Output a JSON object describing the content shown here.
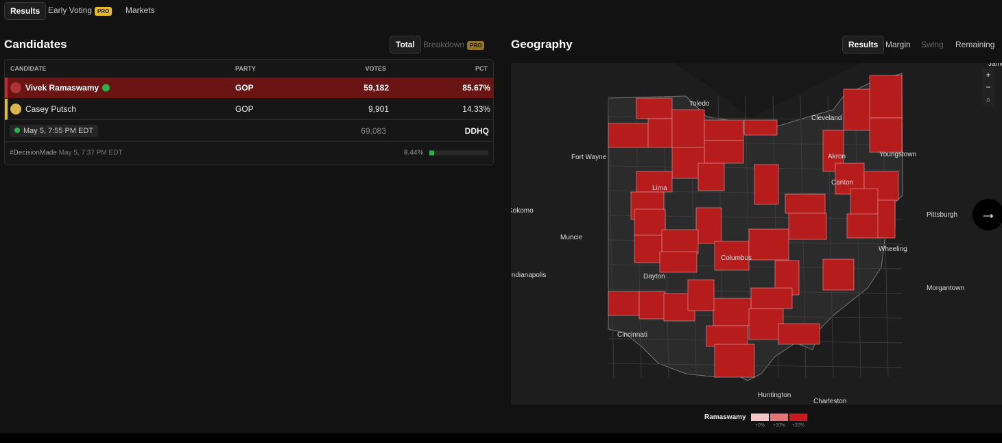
{
  "nav": {
    "tabs": [
      "Results",
      "Early Voting",
      "Markets"
    ],
    "pro_badge": "PRO"
  },
  "candidates": {
    "title": "Candidates",
    "toggle": [
      "Total",
      "Breakdown"
    ],
    "pro_badge": "PRO",
    "headers": [
      "CANDIDATE",
      "PARTY",
      "VOTES",
      "PCT"
    ],
    "rows": [
      {
        "name": "Vivek Ramaswamy",
        "party": "GOP",
        "votes": "59,182",
        "pct": "85.67%"
      },
      {
        "name": "Casey Putsch",
        "party": "GOP",
        "votes": "9,901",
        "pct": "14.33%"
      }
    ],
    "updated": "May 5, 7:55 PM EDT",
    "total_votes": "69,083",
    "source": "DDHQ",
    "decision_tag": "#DecisionMade",
    "decision_time": "May 5, 7:37 PM EDT",
    "reporting": "8.44%"
  },
  "geography": {
    "title": "Geography",
    "tabs": [
      "Results",
      "Margin",
      "Swing",
      "Remaining"
    ],
    "labels": [
      "Toledo",
      "Cleveland",
      "Fort Wayne",
      "Akron",
      "Youngstown",
      "Lima",
      "Canton",
      "Kokomo",
      "Pittsburgh",
      "Muncie",
      "Wheeling",
      "Columbus",
      "Indianapolis",
      "Dayton",
      "Morgantown",
      "Cincinnati",
      "Huntington",
      "Charleston",
      "James"
    ],
    "zoom": [
      "+",
      "−"
    ],
    "legend": {
      "name": "Ramaswamy",
      "steps": [
        "+0%",
        "+10%",
        "+20%"
      ]
    }
  }
}
